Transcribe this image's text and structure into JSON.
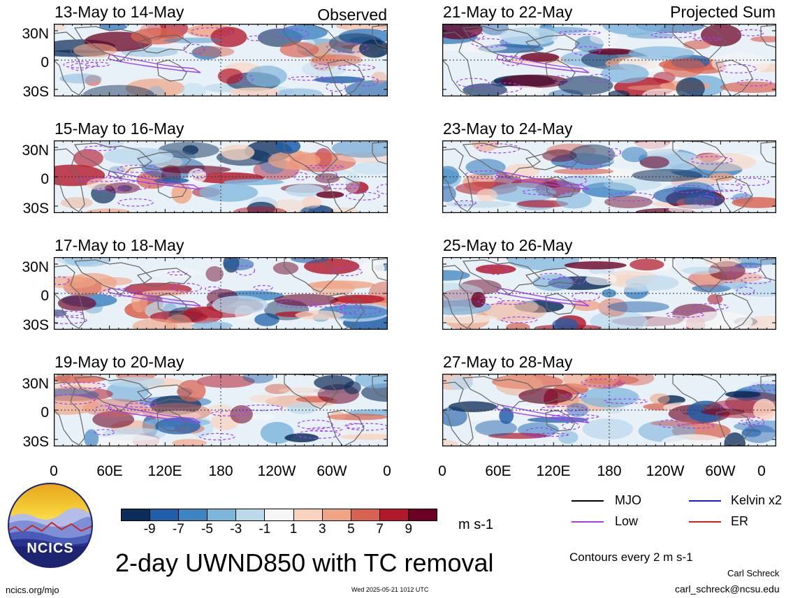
{
  "column_labels": {
    "left": "Observed",
    "right": "Projected Sum"
  },
  "panels": [
    {
      "title": "13-May to 14-May",
      "seed": 11
    },
    {
      "title": "21-May to 22-May",
      "seed": 21
    },
    {
      "title": "15-May to 16-May",
      "seed": 31
    },
    {
      "title": "23-May to 24-May",
      "seed": 41
    },
    {
      "title": "17-May to 18-May",
      "seed": 51
    },
    {
      "title": "25-May to 26-May",
      "seed": 61
    },
    {
      "title": "19-May to 20-May",
      "seed": 71
    },
    {
      "title": "27-May to 28-May",
      "seed": 81
    }
  ],
  "lat_labels": [
    "30N",
    "0",
    "30S"
  ],
  "lon_labels": [
    "0",
    "60E",
    "120E",
    "180",
    "120W",
    "60W",
    "0"
  ],
  "colorbar": {
    "ticks": [
      "-9",
      "-7",
      "-5",
      "-3",
      "-1",
      "1",
      "3",
      "5",
      "7",
      "9"
    ],
    "colors": [
      "#0c2d5a",
      "#1f5ea8",
      "#3f83c2",
      "#7db4dc",
      "#bcd9ec",
      "#f6f6f6",
      "#f9d3c0",
      "#f0a484",
      "#d9614f",
      "#b2182b",
      "#6b0022"
    ],
    "unit": "m s-1"
  },
  "title": "2-day UWND850 with TC removal",
  "legend": [
    {
      "label": "MJO",
      "color": "#000000"
    },
    {
      "label": "Kelvin x2",
      "color": "#1a1ae6"
    },
    {
      "label": "Low",
      "color": "#a040ee"
    },
    {
      "label": "ER",
      "color": "#d42020"
    }
  ],
  "contour_note": "Contours every 2 m s-1",
  "author": "Carl Schreck",
  "email": "carl_schreck@ncsu.edu",
  "website": "ncics.org/mjo",
  "timestamp": "Wed 2025-05-21 1012 UTC",
  "logo_text": "NCICS"
}
